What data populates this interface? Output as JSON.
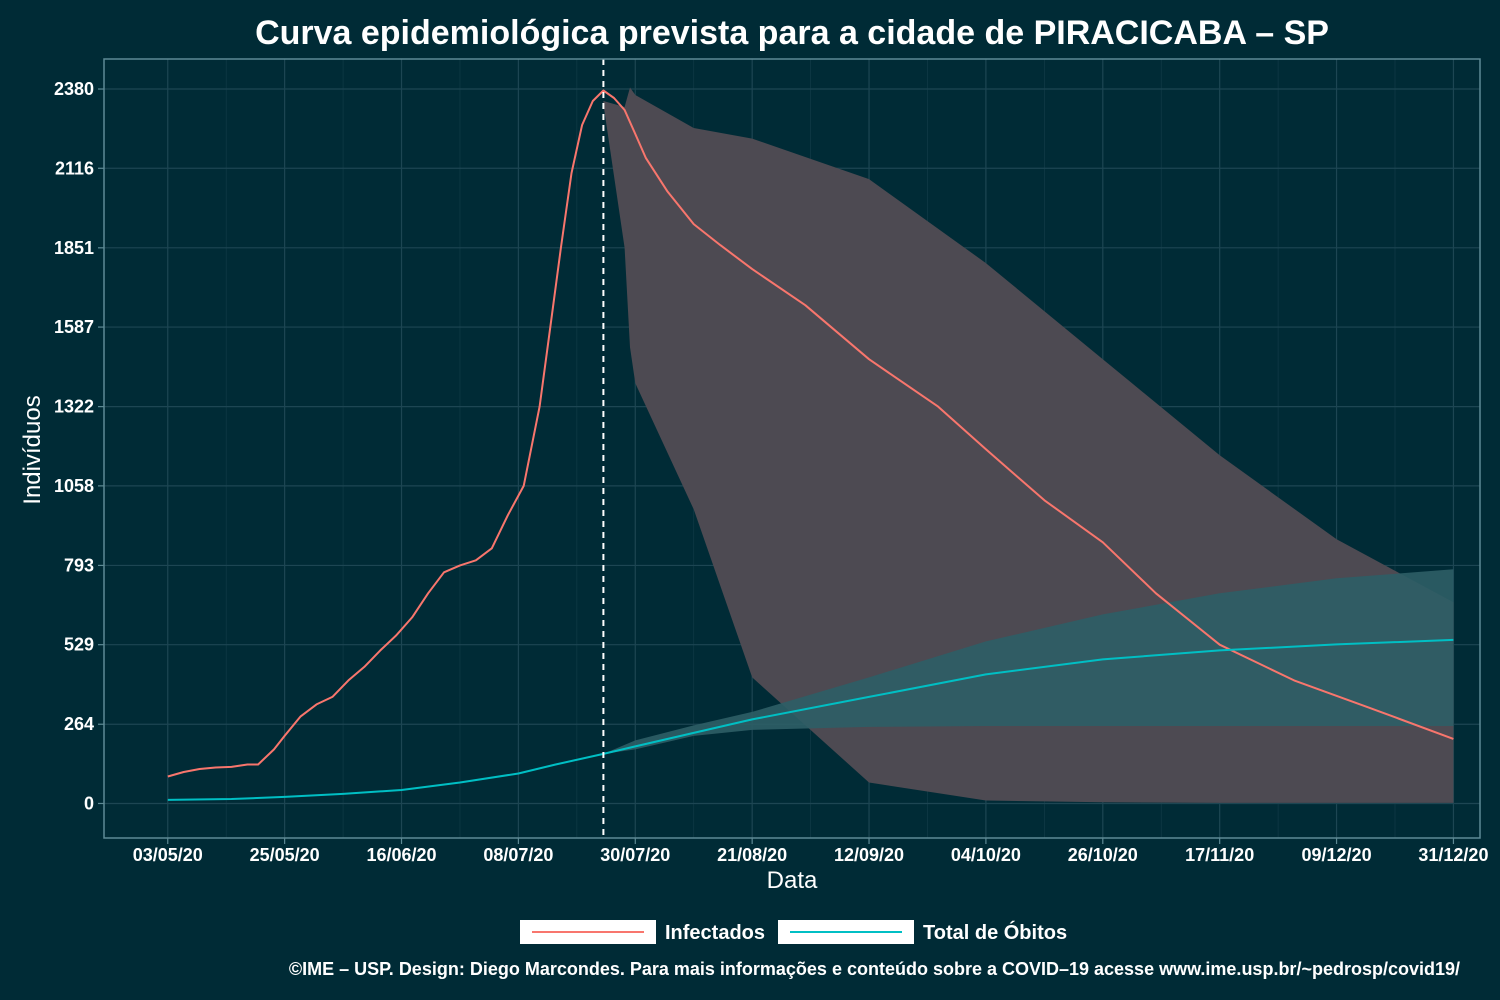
{
  "chart_data": {
    "type": "line",
    "title": "Curva epidemiológica prevista para a cidade de PIRACICABA – SP",
    "xlabel": "Data",
    "ylabel": "Indivíduos",
    "x_ticks": [
      "03/05/20",
      "25/05/20",
      "16/06/20",
      "08/07/20",
      "30/07/20",
      "21/08/20",
      "12/09/20",
      "04/10/20",
      "26/10/20",
      "17/11/20",
      "09/12/20",
      "31/12/20"
    ],
    "y_ticks": [
      0,
      264,
      529,
      793,
      1058,
      1322,
      1587,
      1851,
      2116,
      2380
    ],
    "ylim": [
      -115,
      2480
    ],
    "xlim": [
      "2020-04-21",
      "2021-01-05"
    ],
    "forecast_start": "2020-07-24",
    "grid": true,
    "legend_position": "bottom",
    "series": [
      {
        "name": "Infectados",
        "color": "#f8766d",
        "band_color": "#4d4a52",
        "points": [
          [
            "2020-05-03",
            90
          ],
          [
            "2020-05-06",
            105
          ],
          [
            "2020-05-09",
            115
          ],
          [
            "2020-05-12",
            120
          ],
          [
            "2020-05-15",
            122
          ],
          [
            "2020-05-18",
            130
          ],
          [
            "2020-05-20",
            130
          ],
          [
            "2020-05-23",
            180
          ],
          [
            "2020-05-25",
            225
          ],
          [
            "2020-05-28",
            290
          ],
          [
            "2020-05-31",
            330
          ],
          [
            "2020-06-03",
            355
          ],
          [
            "2020-06-06",
            410
          ],
          [
            "2020-06-09",
            455
          ],
          [
            "2020-06-12",
            510
          ],
          [
            "2020-06-15",
            560
          ],
          [
            "2020-06-18",
            620
          ],
          [
            "2020-06-21",
            700
          ],
          [
            "2020-06-24",
            770
          ],
          [
            "2020-06-27",
            793
          ],
          [
            "2020-06-30",
            810
          ],
          [
            "2020-07-03",
            850
          ],
          [
            "2020-07-06",
            960
          ],
          [
            "2020-07-09",
            1058
          ],
          [
            "2020-07-12",
            1322
          ],
          [
            "2020-07-14",
            1587
          ],
          [
            "2020-07-16",
            1851
          ],
          [
            "2020-07-18",
            2100
          ],
          [
            "2020-07-20",
            2260
          ],
          [
            "2020-07-22",
            2340
          ],
          [
            "2020-07-24",
            2375
          ],
          [
            "2020-07-26",
            2350
          ],
          [
            "2020-07-28",
            2310
          ],
          [
            "2020-07-30",
            2230
          ],
          [
            "2020-08-01",
            2150
          ],
          [
            "2020-08-05",
            2040
          ],
          [
            "2020-08-10",
            1930
          ],
          [
            "2020-08-15",
            1860
          ],
          [
            "2020-08-21",
            1780
          ],
          [
            "2020-08-31",
            1660
          ],
          [
            "2020-09-12",
            1480
          ],
          [
            "2020-09-25",
            1322
          ],
          [
            "2020-10-04",
            1180
          ],
          [
            "2020-10-15",
            1010
          ],
          [
            "2020-10-26",
            870
          ],
          [
            "2020-11-05",
            700
          ],
          [
            "2020-11-17",
            529
          ],
          [
            "2020-12-01",
            410
          ],
          [
            "2020-12-15",
            320
          ],
          [
            "2020-12-31",
            215
          ]
        ],
        "band": {
          "x": [
            "2020-07-24",
            "2020-07-28",
            "2020-07-29",
            "2020-07-30",
            "2020-08-10",
            "2020-08-21",
            "2020-09-12",
            "2020-10-04",
            "2020-10-26",
            "2020-11-17",
            "2020-12-09",
            "2020-12-31"
          ],
          "upper": [
            2340,
            2320,
            2385,
            2360,
            2250,
            2215,
            2080,
            1800,
            1480,
            1160,
            880,
            670
          ],
          "lower": [
            2330,
            1851,
            1520,
            1400,
            980,
            420,
            70,
            10,
            4,
            2,
            2,
            2
          ]
        }
      },
      {
        "name": "Total de Óbitos",
        "color": "#00bfc4",
        "band_color": "#2e5e66",
        "points": [
          [
            "2020-05-03",
            12
          ],
          [
            "2020-05-15",
            15
          ],
          [
            "2020-05-25",
            22
          ],
          [
            "2020-06-05",
            32
          ],
          [
            "2020-06-16",
            45
          ],
          [
            "2020-06-27",
            70
          ],
          [
            "2020-07-08",
            100
          ],
          [
            "2020-07-15",
            130
          ],
          [
            "2020-07-24",
            165
          ],
          [
            "2020-07-30",
            190
          ],
          [
            "2020-08-10",
            235
          ],
          [
            "2020-08-21",
            280
          ],
          [
            "2020-09-12",
            355
          ],
          [
            "2020-10-04",
            430
          ],
          [
            "2020-10-26",
            480
          ],
          [
            "2020-11-17",
            510
          ],
          [
            "2020-12-09",
            530
          ],
          [
            "2020-12-31",
            545
          ]
        ],
        "band": {
          "x": [
            "2020-07-24",
            "2020-07-30",
            "2020-08-10",
            "2020-08-21",
            "2020-09-12",
            "2020-10-04",
            "2020-10-26",
            "2020-11-17",
            "2020-12-09",
            "2020-12-31"
          ],
          "upper": [
            165,
            210,
            260,
            305,
            420,
            540,
            630,
            700,
            750,
            780
          ],
          "lower": [
            165,
            180,
            225,
            245,
            255,
            258,
            258,
            258,
            258,
            258
          ]
        }
      }
    ],
    "caption": "©IME – USP. Design: Diego Marcondes. Para mais informações e conteúdo sobre a COVID–19 acesse www.ime.usp.br/~pedrosp/covid19/"
  },
  "colors": {
    "background": "#002b36",
    "grid": "#1d4653",
    "axis": "#5e8a95",
    "text": "#ffffff",
    "legend_box": "#ffffff"
  }
}
